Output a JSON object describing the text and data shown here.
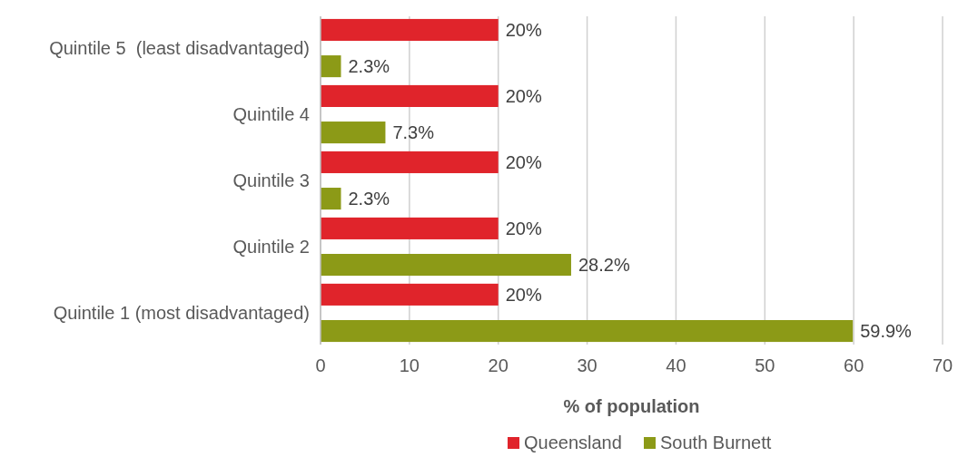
{
  "chart_data": {
    "type": "bar",
    "orientation": "horizontal",
    "categories": [
      "Quintile 5  (least disadvantaged)",
      "Quintile 4",
      "Quintile 3",
      "Quintile 2",
      "Quintile 1 (most disadvantaged)"
    ],
    "series": [
      {
        "name": "Queensland",
        "color": "#e0242b",
        "values": [
          20,
          20,
          20,
          20,
          20
        ],
        "value_labels": [
          "20%",
          "20%",
          "20%",
          "20%",
          "20%"
        ]
      },
      {
        "name": "South Burnett",
        "color": "#8c9a17",
        "values": [
          2.3,
          7.3,
          2.3,
          28.2,
          59.9
        ],
        "value_labels": [
          "2.3%",
          "7.3%",
          "2.3%",
          "28.2%",
          "59.9%"
        ]
      }
    ],
    "xlim": [
      0,
      70
    ],
    "xticks": [
      0,
      10,
      20,
      30,
      40,
      50,
      60,
      70
    ],
    "xlabel": "% of population",
    "grid": "x",
    "legend": "bottom"
  }
}
